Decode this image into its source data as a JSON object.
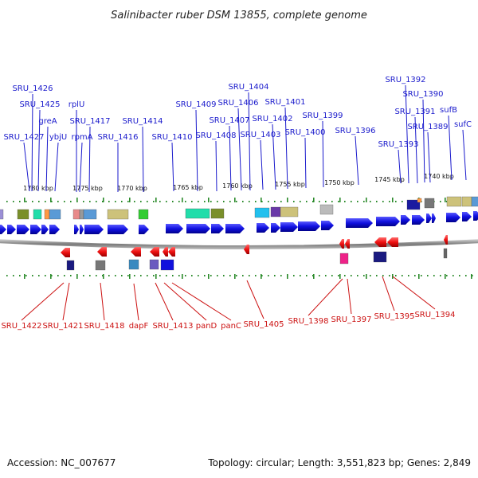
{
  "title": "Salinibacter ruber DSM 13855, complete genome",
  "footer": {
    "accession": "Accession: NC_007677",
    "stats": "Topology: circular; Length: 3,551,823 bp; Genes: 2,849"
  },
  "colors": {
    "forward_label": "#1a1acc",
    "reverse_label": "#cc1111",
    "forward_arrow": "#1111ee",
    "reverse_arrow": "#ee1111",
    "tick": "#2a8a2a",
    "backbone": "#8a8a8a"
  },
  "scale_labels": [
    "1780 kbp",
    "1775 kbp",
    "1770 kbp",
    "1765 kbp",
    "1760 kbp",
    "1755 kbp",
    "1750 kbp",
    "1745 kbp",
    "1740 kbp"
  ],
  "forward_labels": [
    "SRU_1426",
    "SRU_1425",
    "greA",
    "SRU_1427",
    "ybjU",
    "rplU",
    "SRU_1417",
    "rpmA",
    "SRU_1416",
    "SRU_1414",
    "SRU_1410",
    "SRU_1409",
    "SRU_1408",
    "SRU_1407",
    "SRU_1406",
    "SRU_1404",
    "SRU_1403",
    "SRU_1402",
    "SRU_1401",
    "SRU_1400",
    "SRU_1399",
    "SRU_1396",
    "SRU_1393",
    "SRU_1392",
    "SRU_1391",
    "SRU_1390",
    "SRU_1389",
    "sufB",
    "sufC"
  ],
  "reverse_labels": [
    "SRU_1422",
    "SRU_1421",
    "SRU_1418",
    "dapF",
    "SRU_1413",
    "panD",
    "panC",
    "SRU_1405",
    "SRU_1398",
    "SRU_1397",
    "SRU_1395",
    "SRU_1394"
  ]
}
